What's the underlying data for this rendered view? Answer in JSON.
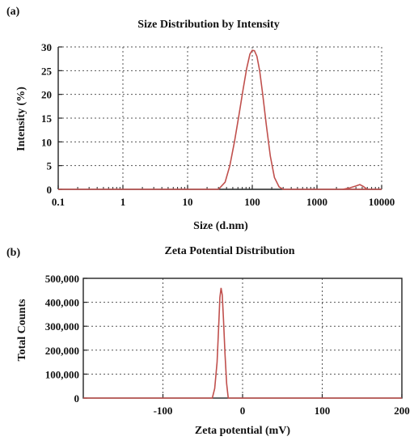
{
  "chart_data": [
    {
      "panel_label": "(a)",
      "type": "line",
      "title": "Size Distribution by Intensity",
      "xlabel": "Size (d.nm)",
      "ylabel": "Intensity (%)",
      "xscale": "log",
      "xlim": [
        0.1,
        10000
      ],
      "ylim": [
        0,
        30
      ],
      "x_ticks": [
        0.1,
        1,
        10,
        100,
        1000,
        10000
      ],
      "x_tick_labels": [
        "0.1",
        "1",
        "10",
        "100",
        "1000",
        "10000"
      ],
      "y_ticks": [
        0,
        5,
        10,
        15,
        20,
        25,
        30
      ],
      "y_tick_labels": [
        "0",
        "5",
        "10",
        "15",
        "20",
        "25",
        "30"
      ],
      "grid": true,
      "line_color": "#c0504d",
      "series": [
        {
          "x": [
            0.1,
            30,
            38,
            45,
            53,
            62,
            72,
            82,
            92,
            100,
            108,
            118,
            130,
            145,
            165,
            190,
            220,
            260,
            300,
            10000
          ],
          "y": [
            0,
            0,
            1.5,
            5,
            10,
            15.5,
            21,
            25.5,
            28.5,
            29.3,
            29.2,
            28,
            25,
            20,
            13.5,
            7,
            2.5,
            0.5,
            0,
            0
          ]
        },
        {
          "x": [
            2500,
            3200,
            4000,
            4600,
            5200,
            6000
          ],
          "y": [
            0,
            0.3,
            0.7,
            1.0,
            0.6,
            0
          ]
        }
      ]
    },
    {
      "panel_label": "(b)",
      "type": "line",
      "title": "Zeta Potential Distribution",
      "xlabel": "Zeta potential (mV)",
      "ylabel": "Total Counts",
      "xlim": [
        -200,
        200
      ],
      "ylim": [
        0,
        500000
      ],
      "x_ticks": [
        -100,
        0,
        100,
        200
      ],
      "x_tick_labels": [
        "-100",
        "0",
        "100",
        "200"
      ],
      "y_ticks": [
        0,
        100000,
        200000,
        300000,
        400000,
        500000
      ],
      "y_tick_labels": [
        "0",
        "100,000",
        "200,000",
        "300,000",
        "400,000",
        "500,000"
      ],
      "grid": true,
      "line_color": "#c0504d",
      "series": [
        {
          "x": [
            -200,
            -38,
            -35,
            -32,
            -30,
            -28.5,
            -27,
            -25.5,
            -24,
            -22,
            -20,
            -18,
            200
          ],
          "y": [
            0,
            0,
            40000,
            150000,
            300000,
            420000,
            460000,
            430000,
            330000,
            180000,
            60000,
            0,
            0
          ]
        }
      ]
    }
  ]
}
